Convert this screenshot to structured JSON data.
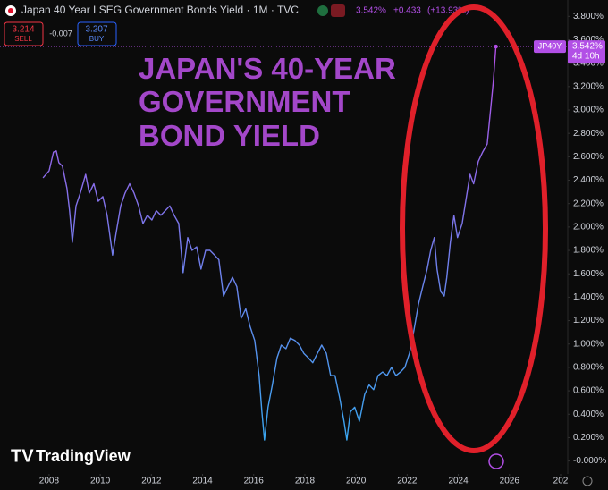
{
  "chart_data": {
    "type": "line",
    "header": {
      "title": "Japan 40 Year LSEG Government Bonds Yield · 1M · TVC",
      "change": "+0.433",
      "change_pct": "(+13.93%)",
      "sell_price": "3.214",
      "sell": "SELL",
      "spread": "-0.007",
      "buy_price": "3.207",
      "buy": "BUY"
    },
    "annotation": [
      "JAPAN'S 40-YEAR",
      "GOVERNMENT",
      "BOND YIELD"
    ],
    "brand": "TradingView",
    "last_value": {
      "value": 3.542,
      "label": "3.542%"
    },
    "symbol": "JP40Y",
    "countdown": "4d 10h",
    "x": [
      2007.76,
      2008.0,
      2008.17,
      2008.28,
      2008.38,
      2008.52,
      2008.7,
      2008.8,
      2008.91,
      2009.05,
      2009.22,
      2009.43,
      2009.57,
      2009.75,
      2009.92,
      2010.1,
      2010.27,
      2010.48,
      2010.62,
      2010.8,
      2010.97,
      2011.15,
      2011.32,
      2011.5,
      2011.67,
      2011.84,
      2012.02,
      2012.19,
      2012.37,
      2012.54,
      2012.72,
      2012.89,
      2013.07,
      2013.24,
      2013.42,
      2013.59,
      2013.77,
      2013.94,
      2014.12,
      2014.29,
      2014.47,
      2014.64,
      2014.82,
      2014.99,
      2015.17,
      2015.34,
      2015.51,
      2015.69,
      2015.86,
      2016.04,
      2016.21,
      2016.32,
      2016.42,
      2016.56,
      2016.73,
      2016.91,
      2017.08,
      2017.26,
      2017.43,
      2017.61,
      2017.79,
      2017.96,
      2018.14,
      2018.31,
      2018.49,
      2018.66,
      2018.84,
      2019.01,
      2019.18,
      2019.36,
      2019.53,
      2019.64,
      2019.78,
      2019.95,
      2020.13,
      2020.34,
      2020.51,
      2020.69,
      2020.86,
      2021.04,
      2021.21,
      2021.39,
      2021.56,
      2021.74,
      2021.91,
      2022.09,
      2022.26,
      2022.44,
      2022.61,
      2022.78,
      2022.92,
      2023.06,
      2023.17,
      2023.31,
      2023.45,
      2023.55,
      2023.69,
      2023.83,
      2023.97,
      2024.15,
      2024.32,
      2024.46,
      2024.6,
      2024.78,
      2024.95,
      2025.13,
      2025.27,
      2025.37,
      2025.47
    ],
    "series": [
      {
        "name": "JP40Y",
        "colors": [
          "#3aa6f0",
          "#b24fe6"
        ],
        "values": [
          2.42,
          2.48,
          2.64,
          2.65,
          2.55,
          2.52,
          2.33,
          2.14,
          1.87,
          2.18,
          2.29,
          2.45,
          2.29,
          2.37,
          2.22,
          2.26,
          2.1,
          1.76,
          1.95,
          2.18,
          2.29,
          2.37,
          2.29,
          2.18,
          2.03,
          2.1,
          2.06,
          2.14,
          2.1,
          2.14,
          2.18,
          2.1,
          2.03,
          1.61,
          1.91,
          1.8,
          1.83,
          1.64,
          1.8,
          1.8,
          1.76,
          1.72,
          1.41,
          1.49,
          1.57,
          1.49,
          1.22,
          1.3,
          1.15,
          1.03,
          0.73,
          0.42,
          0.18,
          0.46,
          0.65,
          0.88,
          0.99,
          0.96,
          1.05,
          1.03,
          0.99,
          0.92,
          0.88,
          0.84,
          0.92,
          0.99,
          0.92,
          0.73,
          0.73,
          0.54,
          0.34,
          0.18,
          0.42,
          0.46,
          0.34,
          0.57,
          0.65,
          0.61,
          0.73,
          0.76,
          0.73,
          0.8,
          0.73,
          0.76,
          0.8,
          0.92,
          1.11,
          1.34,
          1.49,
          1.64,
          1.8,
          1.91,
          1.64,
          1.45,
          1.41,
          1.57,
          1.87,
          2.1,
          1.91,
          2.03,
          2.26,
          2.45,
          2.37,
          2.56,
          2.64,
          2.71,
          3.02,
          3.25,
          3.542
        ]
      }
    ],
    "xlim": [
      2006.08,
      2028.28
    ],
    "ylim": [
      -0.11,
      3.94
    ],
    "xticks": [
      2008,
      2010,
      2012,
      2014,
      2016,
      2018,
      2020,
      2022,
      2024,
      2026,
      {
        "value": 2028,
        "label": "202"
      }
    ],
    "yticks": [
      {
        "value": 0,
        "label": "-0.000%"
      },
      {
        "value": 0.2,
        "label": "0.200%"
      },
      {
        "value": 0.4,
        "label": "0.400%"
      },
      {
        "value": 0.6,
        "label": "0.600%"
      },
      {
        "value": 0.8,
        "label": "0.800%"
      },
      {
        "value": 1.0,
        "label": "1.000%"
      },
      {
        "value": 1.2,
        "label": "1.200%"
      },
      {
        "value": 1.4,
        "label": "1.400%"
      },
      {
        "value": 1.6,
        "label": "1.600%"
      },
      {
        "value": 1.8,
        "label": "1.800%"
      },
      {
        "value": 2.0,
        "label": "2.000%"
      },
      {
        "value": 2.2,
        "label": "2.200%"
      },
      {
        "value": 2.4,
        "label": "2.400%"
      },
      {
        "value": 2.6,
        "label": "2.600%"
      },
      {
        "value": 2.8,
        "label": "2.800%"
      },
      {
        "value": 3.0,
        "label": "3.000%"
      },
      {
        "value": 3.2,
        "label": "3.200%"
      },
      {
        "value": 3.4,
        "label": "3.400%"
      },
      {
        "value": 3.6,
        "label": "3.600%"
      },
      {
        "value": 3.8,
        "label": "3.800%"
      }
    ],
    "grid": false
  }
}
